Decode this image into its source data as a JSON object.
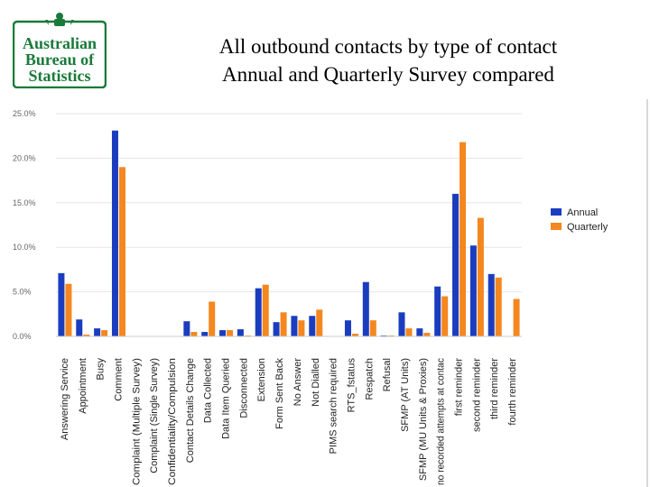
{
  "logo": {
    "lines": [
      "Australian",
      "Bureau of",
      "Statistics"
    ],
    "color": "#1a7a3a"
  },
  "title": {
    "line1": "All outbound contacts by type of contact",
    "line2": "Annual and Quarterly Survey compared"
  },
  "chart_data": {
    "type": "bar",
    "ylim": [
      0,
      25
    ],
    "yticks": [
      "0.0%",
      "5.0%",
      "10.0%",
      "15.0%",
      "20.0%",
      "25.0%"
    ],
    "grid": true,
    "legend_position": "right",
    "colors": {
      "Annual": "#1a3dbf",
      "Quarterly": "#f5871f"
    },
    "categories": [
      "Answering Service",
      "Appointment",
      "Busy",
      "Comment",
      "Complaint (Multiple Survey)",
      "Complaint (Single Survey)",
      "Confidentiality/Compulsion",
      "Contact Details Change",
      "Data Collected",
      "Data Item Queried",
      "Disconnected",
      "Extension",
      "Form Sent Back",
      "No Answer",
      "Not Dialled",
      "PIMS search required",
      "RTS_fstatus",
      "Respatch",
      "Refusal",
      "SFMP (AT Units)",
      "SFMP (MU Units & Proxies)",
      "no recorded attempts at contac",
      "first reminder",
      "second reminder",
      "third reminder",
      "fourth reminder"
    ],
    "series": [
      {
        "name": "Annual",
        "values": [
          7.1,
          1.9,
          0.9,
          23.1,
          0,
          0,
          0,
          1.7,
          0.5,
          0.7,
          0.8,
          5.4,
          1.6,
          2.3,
          2.3,
          0,
          1.8,
          6.1,
          0.1,
          2.7,
          0.9,
          5.6,
          16.0,
          10.2,
          7.0,
          0
        ]
      },
      {
        "name": "Quarterly",
        "values": [
          5.9,
          0.2,
          0.7,
          19.0,
          0,
          0,
          0,
          0.5,
          3.9,
          0.7,
          0.1,
          5.8,
          2.7,
          1.8,
          3.0,
          0,
          0.3,
          1.8,
          0.1,
          0.9,
          0.4,
          4.5,
          21.8,
          13.3,
          6.6,
          4.2
        ]
      }
    ]
  }
}
